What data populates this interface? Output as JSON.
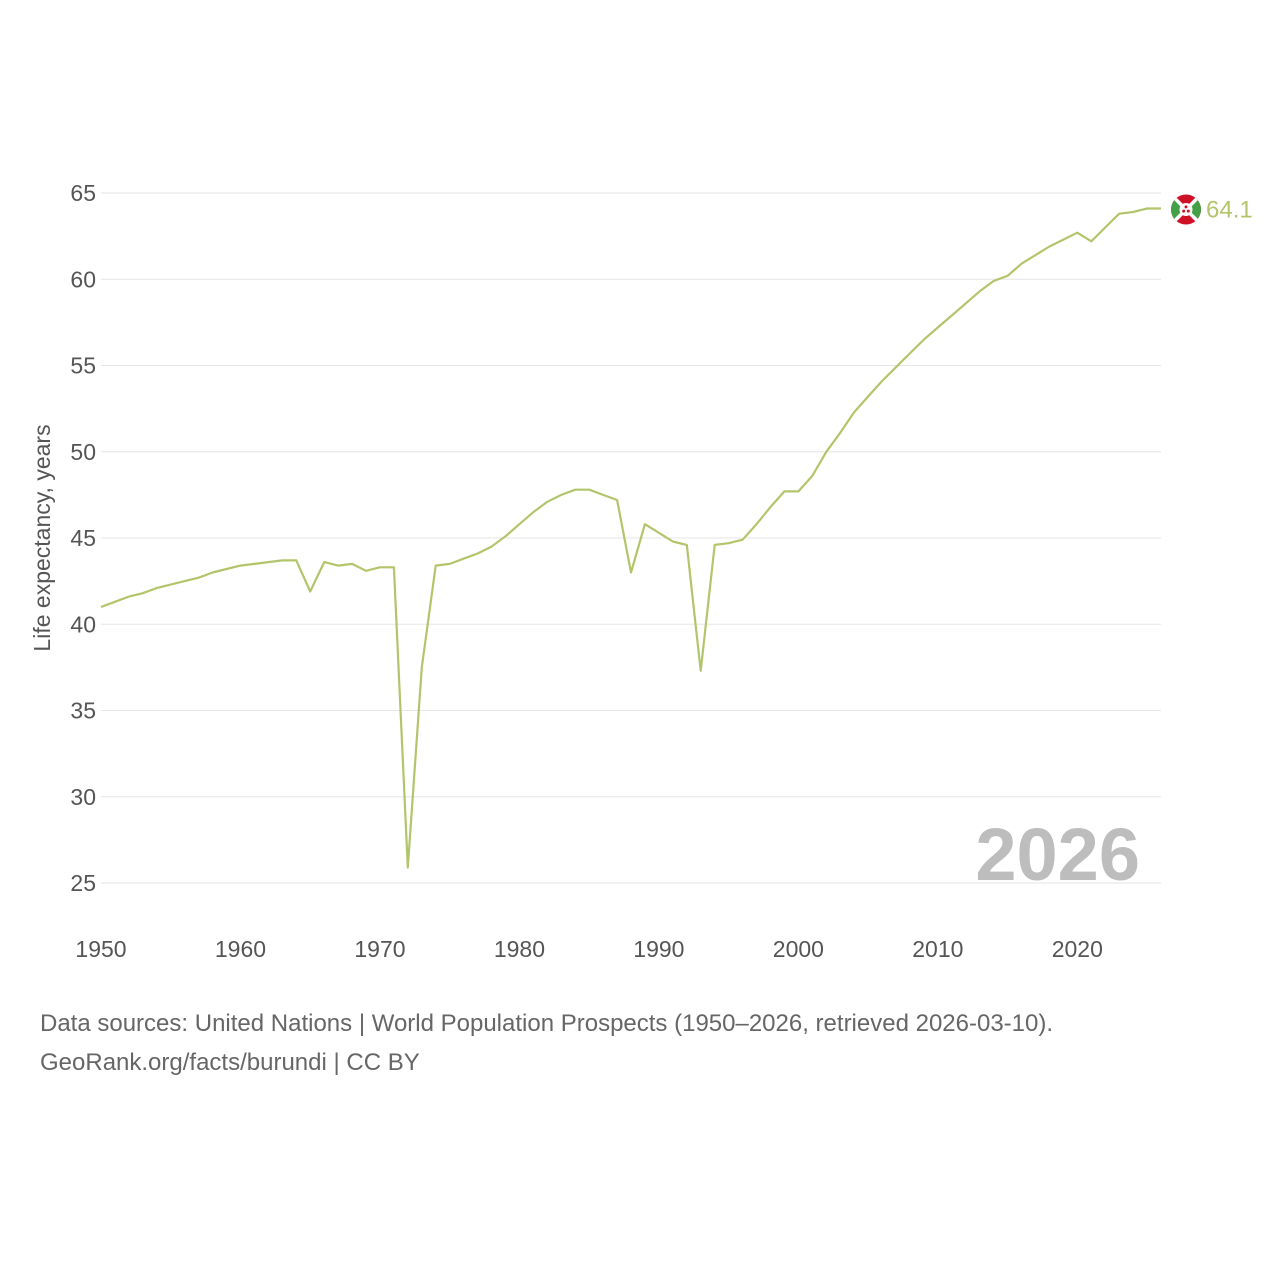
{
  "colors": {
    "line": "#b3c56b",
    "grid": "#e6e6e6",
    "tick_text": "#555555",
    "year_mark": "#bdbdbd",
    "flag_red": "#ce1126",
    "flag_green": "#43a047",
    "flag_white": "#ffffff"
  },
  "chart_data": {
    "type": "line",
    "title": "",
    "xlabel": "",
    "ylabel": "Life expectancy, years",
    "xlim": [
      1950,
      2026
    ],
    "ylim": [
      25,
      65
    ],
    "x_ticks": [
      1950,
      1960,
      1970,
      1980,
      1990,
      2000,
      2010,
      2020
    ],
    "y_ticks": [
      25,
      30,
      35,
      40,
      45,
      50,
      55,
      60,
      65
    ],
    "grid": true,
    "series": [
      {
        "name": "Burundi",
        "flag_icon": "burundi-flag-icon",
        "end_label": "64.1",
        "x": [
          1950,
          1951,
          1952,
          1953,
          1954,
          1955,
          1956,
          1957,
          1958,
          1959,
          1960,
          1961,
          1962,
          1963,
          1964,
          1965,
          1966,
          1967,
          1968,
          1969,
          1970,
          1971,
          1972,
          1973,
          1974,
          1975,
          1976,
          1977,
          1978,
          1979,
          1980,
          1981,
          1982,
          1983,
          1984,
          1985,
          1986,
          1987,
          1988,
          1989,
          1990,
          1991,
          1992,
          1993,
          1994,
          1995,
          1996,
          1997,
          1998,
          1999,
          2000,
          2001,
          2002,
          2003,
          2004,
          2005,
          2006,
          2007,
          2008,
          2009,
          2010,
          2011,
          2012,
          2013,
          2014,
          2015,
          2016,
          2017,
          2018,
          2019,
          2020,
          2021,
          2022,
          2023,
          2024,
          2025,
          2026
        ],
        "values": [
          41.0,
          41.3,
          41.6,
          41.8,
          42.1,
          42.3,
          42.5,
          42.7,
          43.0,
          43.2,
          43.4,
          43.5,
          43.6,
          43.7,
          43.7,
          41.9,
          43.6,
          43.4,
          43.5,
          43.1,
          43.3,
          43.3,
          25.9,
          37.5,
          43.4,
          43.5,
          43.8,
          44.1,
          44.5,
          45.1,
          45.8,
          46.5,
          47.1,
          47.5,
          47.8,
          47.8,
          47.5,
          47.2,
          43.0,
          45.8,
          45.3,
          44.8,
          44.6,
          37.3,
          44.6,
          44.7,
          44.9,
          45.8,
          46.8,
          47.7,
          47.7,
          48.6,
          50.0,
          51.1,
          52.3,
          53.2,
          54.1,
          54.9,
          55.7,
          56.5,
          57.2,
          57.9,
          58.6,
          59.3,
          59.9,
          60.2,
          60.9,
          61.4,
          61.9,
          62.3,
          62.7,
          62.2,
          63.0,
          63.8,
          63.9,
          64.1,
          64.1
        ]
      }
    ],
    "year_watermark": "2026"
  },
  "footer": {
    "sources": "Data sources: United Nations | World Population Prospects (1950–2026, retrieved 2026-03-10).",
    "credit": "GeoRank.org/facts/burundi | CC BY"
  }
}
